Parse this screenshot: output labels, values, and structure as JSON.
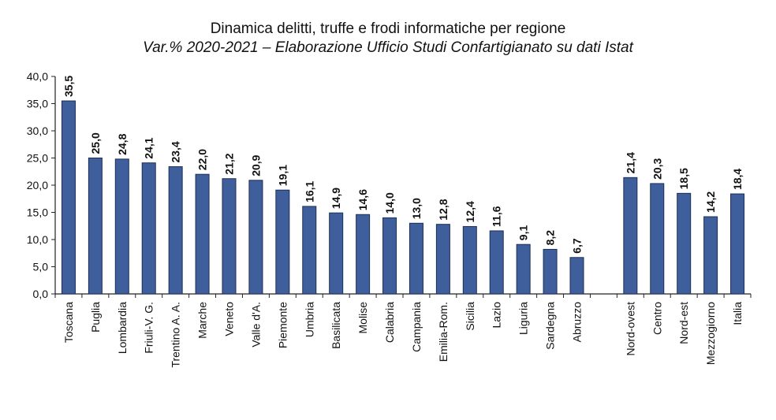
{
  "chart_data": {
    "type": "bar",
    "title": "Dinamica delitti, truffe e frodi informatiche per regione",
    "subtitle": "Var.% 2020-2021 – Elaborazione Ufficio Studi Confartigianato su dati Istat",
    "xlabel": "",
    "ylabel": "",
    "ylim": [
      0,
      40
    ],
    "yticks": [
      "0,0",
      "5,0",
      "10,0",
      "15,0",
      "20,0",
      "25,0",
      "30,0",
      "35,0",
      "40,0"
    ],
    "grid": false,
    "bar_color": "#3f5f9c",
    "categories": [
      "Toscana",
      "Puglia",
      "Lombardia",
      "Friuli-V. G.",
      "Trentino A. A.",
      "Marche",
      "Veneto",
      "Valle d'A.",
      "Piemonte",
      "Umbria",
      "Basilicata",
      "Molise",
      "Calabria",
      "Campania",
      "Emilia-Rom.",
      "Sicilia",
      "Lazio",
      "Liguria",
      "Sardegna",
      "Abruzzo",
      "",
      "Nord-ovest",
      "Centro",
      "Nord-est",
      "Mezzogiorno",
      "Italia"
    ],
    "values": [
      35.5,
      25.0,
      24.8,
      24.1,
      23.4,
      22.0,
      21.2,
      20.9,
      19.1,
      16.1,
      14.9,
      14.6,
      14.0,
      13.0,
      12.8,
      12.4,
      11.6,
      9.1,
      8.2,
      6.7,
      null,
      21.4,
      20.3,
      18.5,
      14.2,
      18.4
    ],
    "value_labels": [
      "35,5",
      "25,0",
      "24,8",
      "24,1",
      "23,4",
      "22,0",
      "21,2",
      "20,9",
      "19,1",
      "16,1",
      "14,9",
      "14,6",
      "14,0",
      "13,0",
      "12,8",
      "12,4",
      "11,6",
      "9,1",
      "8,2",
      "6,7",
      "",
      "21,4",
      "20,3",
      "18,5",
      "14,2",
      "18,4"
    ]
  }
}
